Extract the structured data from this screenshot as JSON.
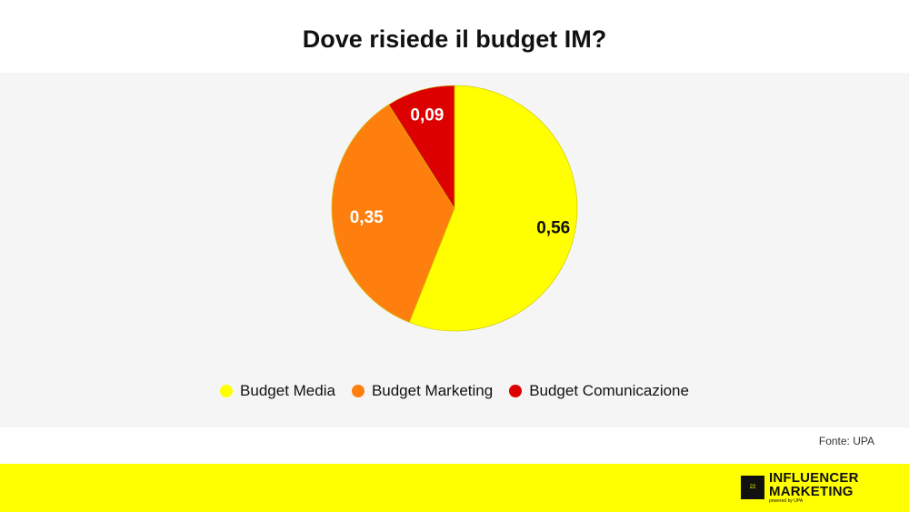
{
  "header": {
    "title": "Dove risiede il budget IM?"
  },
  "chart_data": {
    "type": "pie",
    "title": "Dove risiede il budget IM?",
    "slices": [
      {
        "name": "Budget Media",
        "value": 0.56,
        "label": "0,56",
        "color": "#ffff00",
        "label_color": "#111111"
      },
      {
        "name": "Budget Marketing",
        "value": 0.35,
        "label": "0,35",
        "color": "#ff7f0e",
        "label_color": "#ffffff"
      },
      {
        "name": "Budget Comunicazione",
        "value": 0.09,
        "label": "0,09",
        "color": "#dd0000",
        "label_color": "#ffffff"
      }
    ],
    "legend_position": "bottom"
  },
  "source": "Fonte: UPA",
  "footer": {
    "background": "#ffff00",
    "logo": {
      "box_text": "22",
      "line1": "INFLUENCER",
      "line2": "MARKETING",
      "sub": "powered by UPA"
    }
  }
}
